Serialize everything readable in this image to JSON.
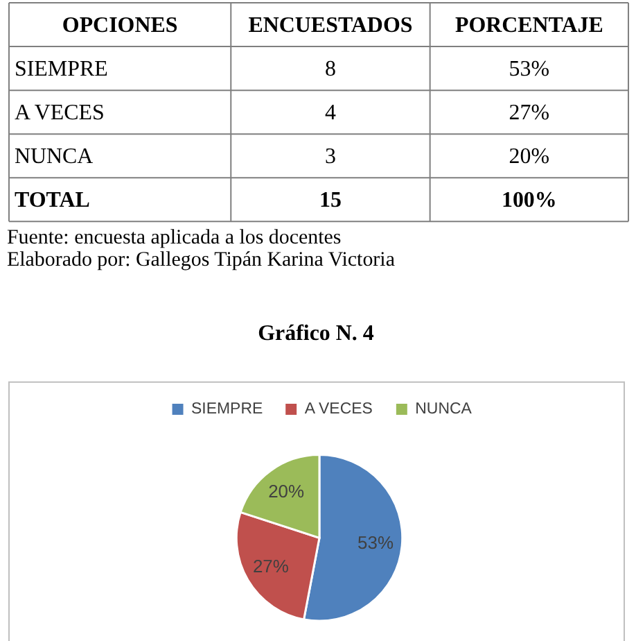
{
  "chart_data": [
    {
      "type": "other",
      "xlabel": "OPCIONES",
      "categories": [
        "SIEMPRE",
        "A VECES",
        "NUNCA",
        "TOTAL"
      ],
      "data_labels": true,
      "series": [
        {
          "name": "ENCUESTADOS",
          "values": [
            8,
            4,
            3,
            15
          ]
        },
        {
          "name": "PORCENTAJE",
          "values": [
            53,
            27,
            20,
            100
          ],
          "value_labels": [
            "53%",
            "27%",
            "20%",
            "100%"
          ]
        }
      ],
      "annotations": [
        "Fuente: encuesta aplicada a los docentes",
        "Elaborado por: Gallegos Tipán Karina Victoria"
      ]
    },
    {
      "type": "pie",
      "title": "Gráfico N. 4",
      "categories": [
        "SIEMPRE",
        "A VECES",
        "NUNCA"
      ],
      "values": [
        53,
        27,
        20
      ],
      "colors": [
        "#4f81bd",
        "#c0504d",
        "#9bbb59"
      ],
      "value_labels": [
        "53%",
        "27%",
        "20%"
      ],
      "legend": "top"
    }
  ]
}
